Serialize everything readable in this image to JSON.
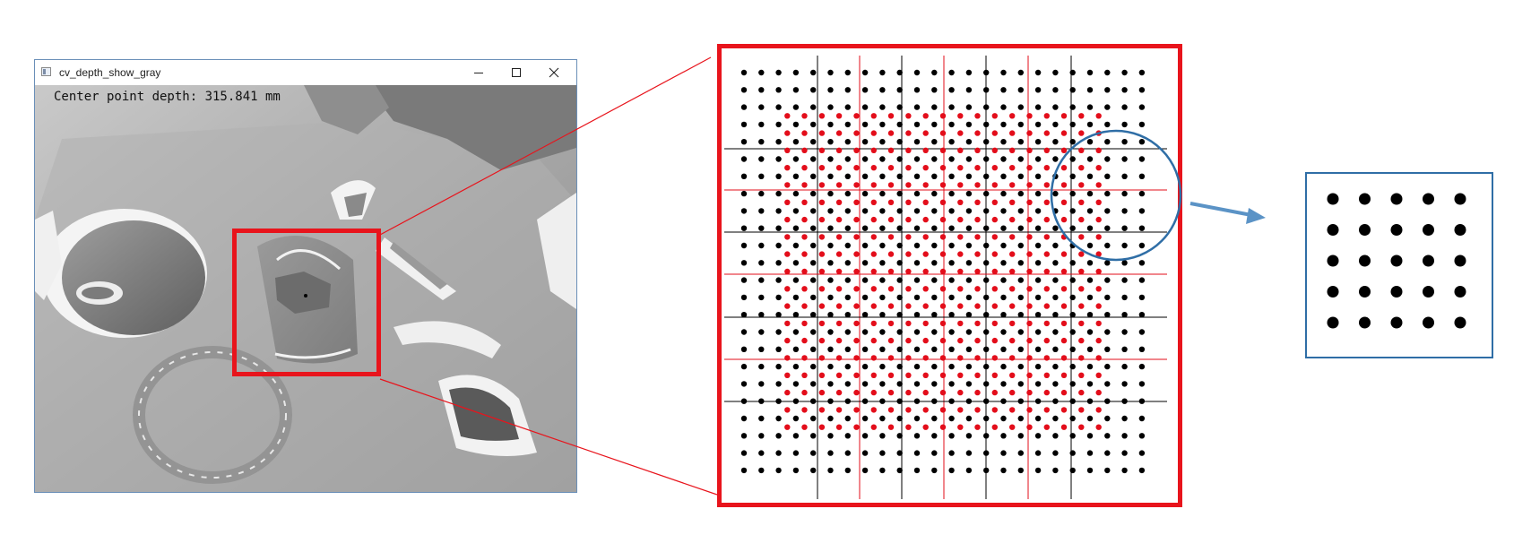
{
  "window": {
    "title": "cv_depth_show_gray",
    "controls": {
      "minimize_icon": "minimize-icon",
      "maximize_icon": "maximize-icon",
      "close_icon": "close-icon"
    }
  },
  "image": {
    "overlay_text": "Center point depth: 315.841 mm"
  },
  "colors": {
    "roi_red": "#e8141c",
    "point_black": "#000000",
    "point_red": "#e30d1a",
    "window_border": "#6a8fb8",
    "highlight_blue": "#2f6ea6",
    "depth_background": "#b4b4b4"
  },
  "zoom_panel": {
    "black_points_grid": "24x24",
    "red_points_grid": "19x19",
    "black_lines": 5,
    "red_lines": 4
  },
  "detail_panel": {
    "points_grid": "5x5"
  }
}
